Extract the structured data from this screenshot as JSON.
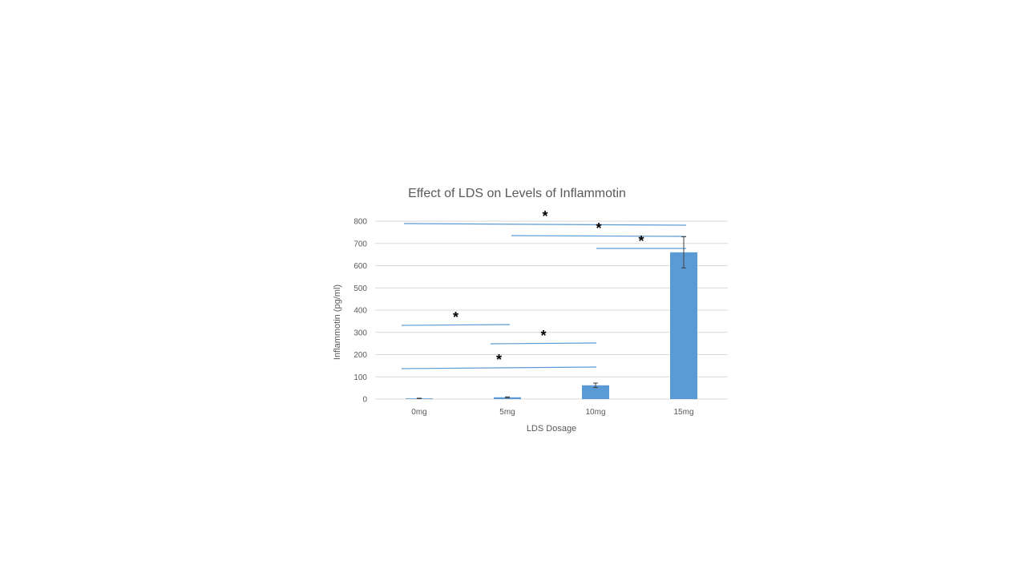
{
  "chart_data": {
    "type": "bar",
    "title": "Effect of LDS on Levels of Inflammotin",
    "xlabel": "LDS Dosage",
    "ylabel": "Inflammotin (pg/ml)",
    "categories": [
      "0mg",
      "5mg",
      "10mg",
      "15mg"
    ],
    "values": [
      3,
      8,
      62,
      660
    ],
    "error": [
      1,
      2,
      10,
      70
    ],
    "ylim": [
      0,
      800
    ],
    "yticks": [
      0,
      100,
      200,
      300,
      400,
      500,
      600,
      700,
      800
    ],
    "grid": true,
    "legend": "none",
    "bar_color": "#5B9BD5",
    "significance": [
      {
        "from": 0,
        "to": 3,
        "y": 790,
        "label": "*"
      },
      {
        "from": 1,
        "to": 3,
        "y": 735,
        "label": "*"
      },
      {
        "from": 2,
        "to": 3,
        "y": 680,
        "label": "*"
      },
      {
        "from": 0,
        "to": 1,
        "y": 335,
        "label": "*"
      },
      {
        "from": 1,
        "to": 2,
        "y": 250,
        "label": "*"
      },
      {
        "from": 0,
        "to": 2,
        "y": 140,
        "label": "*"
      }
    ]
  }
}
